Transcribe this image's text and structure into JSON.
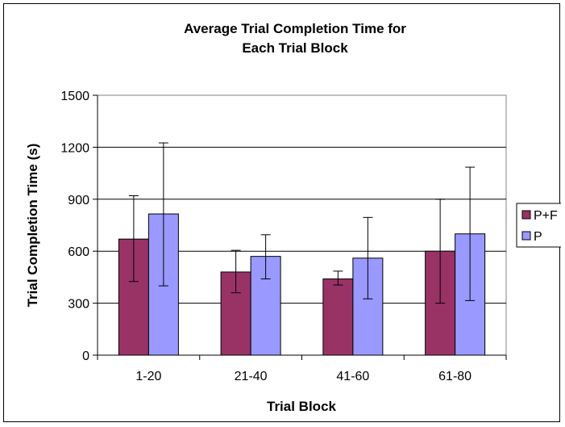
{
  "chart_data": {
    "type": "bar",
    "title_lines": [
      "Average Trial Completion Time for",
      "Each Trial Block"
    ],
    "xlabel": "Trial Block",
    "ylabel": "Trial Completion Time (s)",
    "categories": [
      "1-20",
      "21-40",
      "41-60",
      "61-80"
    ],
    "ylim": [
      0,
      1500
    ],
    "yticks": [
      0,
      300,
      600,
      900,
      1200,
      1500
    ],
    "grid": true,
    "legend_position": "right",
    "series": [
      {
        "name": "P+F",
        "color": "#993366",
        "values": [
          670,
          480,
          440,
          600
        ],
        "error_low": [
          425,
          360,
          405,
          300
        ],
        "error_high": [
          920,
          605,
          485,
          900
        ]
      },
      {
        "name": "P",
        "color": "#9999ff",
        "values": [
          815,
          570,
          560,
          700
        ],
        "error_low": [
          400,
          440,
          325,
          315
        ],
        "error_high": [
          1225,
          695,
          795,
          1085
        ]
      }
    ]
  }
}
